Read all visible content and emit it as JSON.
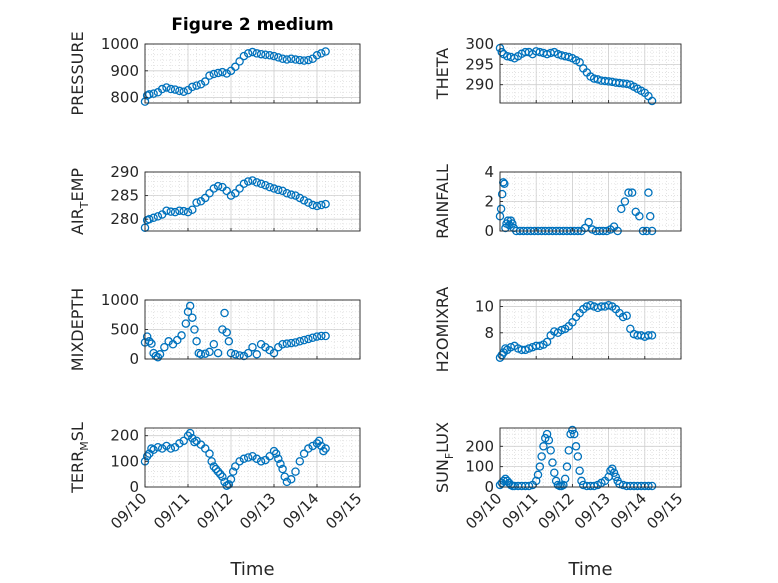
{
  "figure": {
    "title": "Figure 2 medium"
  },
  "marker_color": "#0072BD",
  "chart_data": [
    {
      "type": "scatter",
      "ylabel_main": "PRESSURE",
      "ylabel_sub": "",
      "ylabel_tail": "",
      "xlabel": "",
      "ylim": [
        780,
        1000
      ],
      "yticks": [
        {
          "v": 800,
          "label": "800"
        },
        {
          "v": 900,
          "label": "900"
        },
        {
          "v": 1000,
          "label": "1000"
        }
      ],
      "xlim": [
        10,
        15
      ],
      "xticks": [],
      "show_xticklabels": false,
      "x": [
        10.0,
        10.05,
        10.1,
        10.2,
        10.3,
        10.4,
        10.5,
        10.6,
        10.7,
        10.8,
        10.9,
        11.0,
        11.1,
        11.2,
        11.3,
        11.4,
        11.5,
        11.6,
        11.7,
        11.8,
        11.9,
        12.0,
        12.1,
        12.2,
        12.3,
        12.4,
        12.5,
        12.6,
        12.7,
        12.8,
        12.9,
        13.0,
        13.1,
        13.2,
        13.3,
        13.4,
        13.5,
        13.6,
        13.7,
        13.8,
        13.9,
        14.0,
        14.1,
        14.2
      ],
      "y": [
        785,
        808,
        812,
        815,
        820,
        832,
        838,
        832,
        830,
        825,
        822,
        828,
        840,
        845,
        850,
        860,
        882,
        888,
        892,
        895,
        890,
        900,
        915,
        935,
        955,
        965,
        970,
        965,
        962,
        960,
        958,
        955,
        950,
        945,
        942,
        945,
        942,
        940,
        938,
        940,
        945,
        958,
        965,
        972
      ]
    },
    {
      "type": "scatter",
      "ylabel_main": "THETA",
      "ylabel_sub": "",
      "ylabel_tail": "",
      "xlabel": "",
      "ylim": [
        285.5,
        300
      ],
      "yticks": [
        {
          "v": 290,
          "label": "290"
        },
        {
          "v": 295,
          "label": "295"
        },
        {
          "v": 300,
          "label": "300"
        }
      ],
      "xlim": [
        10,
        15
      ],
      "xticks": [],
      "show_xticklabels": false,
      "x": [
        10.0,
        10.05,
        10.1,
        10.2,
        10.3,
        10.4,
        10.5,
        10.6,
        10.7,
        10.8,
        10.9,
        11.0,
        11.1,
        11.2,
        11.3,
        11.4,
        11.5,
        11.6,
        11.7,
        11.8,
        11.9,
        12.0,
        12.1,
        12.2,
        12.3,
        12.4,
        12.5,
        12.6,
        12.7,
        12.8,
        12.9,
        13.0,
        13.1,
        13.2,
        13.3,
        13.4,
        13.5,
        13.6,
        13.7,
        13.8,
        13.9,
        14.0,
        14.1,
        14.2
      ],
      "y": [
        299.0,
        298.0,
        297.5,
        297.0,
        296.8,
        296.5,
        297.0,
        297.6,
        298.0,
        298.0,
        297.5,
        298.2,
        298.0,
        297.8,
        297.5,
        297.8,
        298.0,
        297.5,
        297.2,
        297.0,
        296.8,
        296.5,
        296.0,
        295.5,
        294.0,
        293.0,
        292.0,
        291.5,
        291.3,
        291.0,
        290.9,
        290.8,
        290.7,
        290.5,
        290.4,
        290.3,
        290.2,
        290.0,
        289.5,
        289.0,
        288.5,
        288.0,
        287.2,
        286.0
      ]
    },
    {
      "type": "scatter",
      "ylabel_main": "AIR",
      "ylabel_sub": "T",
      "ylabel_tail": "EMP",
      "xlabel": "",
      "ylim": [
        277.5,
        290
      ],
      "yticks": [
        {
          "v": 280,
          "label": "280"
        },
        {
          "v": 285,
          "label": "285"
        },
        {
          "v": 290,
          "label": "290"
        }
      ],
      "xlim": [
        10,
        15
      ],
      "xticks": [],
      "show_xticklabels": false,
      "x": [
        10.0,
        10.05,
        10.1,
        10.2,
        10.3,
        10.4,
        10.5,
        10.6,
        10.7,
        10.8,
        10.9,
        11.0,
        11.1,
        11.2,
        11.3,
        11.4,
        11.5,
        11.6,
        11.7,
        11.8,
        11.9,
        12.0,
        12.1,
        12.2,
        12.3,
        12.4,
        12.5,
        12.6,
        12.7,
        12.8,
        12.9,
        13.0,
        13.1,
        13.2,
        13.3,
        13.4,
        13.5,
        13.6,
        13.7,
        13.8,
        13.9,
        14.0,
        14.1,
        14.2
      ],
      "y": [
        278.2,
        279.8,
        280.0,
        280.3,
        280.6,
        281.0,
        281.8,
        281.6,
        281.5,
        281.8,
        281.7,
        281.5,
        282.0,
        283.5,
        283.8,
        284.5,
        285.5,
        286.5,
        287.0,
        286.8,
        286.0,
        285.0,
        285.5,
        286.5,
        287.5,
        288.0,
        288.2,
        287.8,
        287.5,
        287.2,
        286.8,
        286.5,
        286.2,
        286.0,
        285.5,
        285.2,
        285.0,
        284.5,
        284.0,
        283.5,
        283.0,
        282.8,
        283.0,
        283.2
      ]
    },
    {
      "type": "scatter",
      "ylabel_main": "RAINFALL",
      "ylabel_sub": "",
      "ylabel_tail": "",
      "xlabel": "",
      "ylim": [
        0,
        4
      ],
      "yticks": [
        {
          "v": 0,
          "label": "0"
        },
        {
          "v": 2,
          "label": "2"
        },
        {
          "v": 4,
          "label": "4"
        }
      ],
      "xlim": [
        10,
        15
      ],
      "xticks": [],
      "show_xticklabels": false,
      "x": [
        10.0,
        10.03,
        10.06,
        10.09,
        10.12,
        10.15,
        10.18,
        10.22,
        10.26,
        10.3,
        10.34,
        10.38,
        10.45,
        10.55,
        10.65,
        10.75,
        10.85,
        10.95,
        11.05,
        11.15,
        11.25,
        11.35,
        11.45,
        11.55,
        11.65,
        11.75,
        11.85,
        11.95,
        12.05,
        12.15,
        12.25,
        12.35,
        12.45,
        12.55,
        12.65,
        12.75,
        12.85,
        12.95,
        13.05,
        13.15,
        13.25,
        13.35,
        13.45,
        13.55,
        13.65,
        13.75,
        13.85,
        13.95,
        14.05,
        14.1,
        14.15,
        14.2
      ],
      "y": [
        1.0,
        1.5,
        2.5,
        3.3,
        3.2,
        0.2,
        0.5,
        0.7,
        0.4,
        0.7,
        0.5,
        0.2,
        0,
        0,
        0,
        0,
        0,
        0,
        0,
        0,
        0,
        0,
        0,
        0,
        0,
        0,
        0,
        0,
        0,
        0,
        0,
        0.2,
        0.6,
        0.1,
        0,
        0,
        0,
        0,
        0.1,
        0.3,
        0,
        1.5,
        2.0,
        2.6,
        2.6,
        1.3,
        1.0,
        0,
        0,
        2.6,
        1.0,
        0
      ]
    },
    {
      "type": "scatter",
      "ylabel_main": "MIXDEPTH",
      "ylabel_sub": "",
      "ylabel_tail": "",
      "xlabel": "",
      "ylim": [
        0,
        1000
      ],
      "yticks": [
        {
          "v": 0,
          "label": "0"
        },
        {
          "v": 500,
          "label": "500"
        },
        {
          "v": 1000,
          "label": "1000"
        }
      ],
      "xlim": [
        10,
        15
      ],
      "xticks": [],
      "show_xticklabels": false,
      "x": [
        10.0,
        10.05,
        10.1,
        10.15,
        10.2,
        10.25,
        10.3,
        10.35,
        10.45,
        10.55,
        10.65,
        10.75,
        10.85,
        10.95,
        11.0,
        11.05,
        11.1,
        11.15,
        11.2,
        11.25,
        11.3,
        11.4,
        11.5,
        11.6,
        11.7,
        11.8,
        11.85,
        11.9,
        11.95,
        12.0,
        12.1,
        12.2,
        12.3,
        12.4,
        12.5,
        12.6,
        12.7,
        12.8,
        12.9,
        13.0,
        13.1,
        13.2,
        13.3,
        13.4,
        13.5,
        13.6,
        13.7,
        13.8,
        13.9,
        14.0,
        14.1,
        14.2
      ],
      "y": [
        280,
        380,
        300,
        260,
        100,
        50,
        30,
        80,
        200,
        300,
        250,
        320,
        400,
        600,
        800,
        900,
        700,
        500,
        300,
        100,
        80,
        90,
        120,
        250,
        100,
        500,
        780,
        450,
        300,
        100,
        80,
        60,
        50,
        100,
        200,
        80,
        250,
        200,
        150,
        100,
        200,
        250,
        260,
        270,
        280,
        300,
        320,
        340,
        360,
        380,
        390,
        390
      ]
    },
    {
      "type": "scatter",
      "ylabel_main": "H2OMIXRA",
      "ylabel_sub": "",
      "ylabel_tail": "",
      "xlabel": "",
      "ylim": [
        6,
        10.5
      ],
      "yticks": [
        {
          "v": 8,
          "label": "8"
        },
        {
          "v": 10,
          "label": "10"
        }
      ],
      "xlim": [
        10,
        15
      ],
      "xticks": [],
      "show_xticklabels": false,
      "x": [
        10.0,
        10.05,
        10.1,
        10.15,
        10.2,
        10.3,
        10.4,
        10.5,
        10.6,
        10.7,
        10.8,
        10.9,
        11.0,
        11.1,
        11.2,
        11.3,
        11.4,
        11.5,
        11.6,
        11.7,
        11.8,
        11.9,
        12.0,
        12.1,
        12.2,
        12.3,
        12.4,
        12.5,
        12.6,
        12.7,
        12.8,
        12.9,
        13.0,
        13.1,
        13.2,
        13.3,
        13.4,
        13.5,
        13.6,
        13.7,
        13.8,
        13.9,
        14.0,
        14.1,
        14.2
      ],
      "y": [
        6.1,
        6.3,
        6.5,
        6.8,
        6.7,
        6.9,
        7.0,
        6.8,
        6.7,
        6.7,
        6.8,
        6.9,
        7.0,
        7.0,
        7.1,
        7.3,
        7.8,
        8.1,
        8.0,
        8.2,
        8.3,
        8.5,
        8.8,
        9.2,
        9.5,
        9.8,
        10.0,
        10.1,
        10.0,
        9.9,
        10.0,
        10.0,
        10.1,
        10.0,
        9.8,
        9.5,
        9.2,
        9.3,
        8.3,
        7.9,
        7.8,
        7.8,
        7.7,
        7.8,
        7.8
      ]
    },
    {
      "type": "scatter",
      "ylabel_main": "TERR",
      "ylabel_sub": "M",
      "ylabel_tail": "SL",
      "xlabel": "Time",
      "ylim": [
        0,
        230
      ],
      "yticks": [
        {
          "v": 0,
          "label": "0"
        },
        {
          "v": 100,
          "label": "100"
        },
        {
          "v": 200,
          "label": "200"
        }
      ],
      "xlim": [
        10,
        15
      ],
      "xticks": [
        {
          "v": 10,
          "label": "09/10"
        },
        {
          "v": 11,
          "label": "09/11"
        },
        {
          "v": 12,
          "label": "09/12"
        },
        {
          "v": 13,
          "label": "09/13"
        },
        {
          "v": 14,
          "label": "09/14"
        },
        {
          "v": 15,
          "label": "09/15"
        }
      ],
      "show_xticklabels": true,
      "x": [
        10.0,
        10.05,
        10.1,
        10.15,
        10.2,
        10.3,
        10.4,
        10.5,
        10.6,
        10.7,
        10.8,
        10.9,
        11.0,
        11.05,
        11.1,
        11.15,
        11.2,
        11.3,
        11.4,
        11.5,
        11.55,
        11.6,
        11.65,
        11.7,
        11.75,
        11.8,
        11.85,
        11.9,
        11.95,
        12.0,
        12.05,
        12.1,
        12.2,
        12.3,
        12.4,
        12.5,
        12.6,
        12.7,
        12.8,
        12.9,
        13.0,
        13.05,
        13.1,
        13.15,
        13.2,
        13.25,
        13.3,
        13.4,
        13.5,
        13.6,
        13.7,
        13.8,
        13.9,
        14.0,
        14.05,
        14.1,
        14.15,
        14.2
      ],
      "y": [
        100,
        120,
        130,
        150,
        145,
        155,
        150,
        160,
        150,
        155,
        170,
        180,
        200,
        210,
        190,
        175,
        180,
        165,
        150,
        130,
        100,
        80,
        70,
        60,
        50,
        40,
        20,
        5,
        10,
        30,
        60,
        80,
        100,
        110,
        115,
        120,
        110,
        100,
        105,
        120,
        140,
        130,
        110,
        90,
        70,
        40,
        20,
        30,
        60,
        100,
        130,
        150,
        160,
        170,
        180,
        160,
        140,
        150
      ]
    },
    {
      "type": "scatter",
      "ylabel_main": "SUN",
      "ylabel_sub": "F",
      "ylabel_tail": "LUX",
      "xlabel": "Time",
      "ylim": [
        0,
        290
      ],
      "yticks": [
        {
          "v": 0,
          "label": "0"
        },
        {
          "v": 100,
          "label": "100"
        },
        {
          "v": 200,
          "label": "200"
        }
      ],
      "xlim": [
        10,
        15
      ],
      "xticks": [
        {
          "v": 10,
          "label": "09/10"
        },
        {
          "v": 11,
          "label": "09/11"
        },
        {
          "v": 12,
          "label": "09/12"
        },
        {
          "v": 13,
          "label": "09/13"
        },
        {
          "v": 14,
          "label": "09/14"
        },
        {
          "v": 15,
          "label": "09/15"
        }
      ],
      "show_xticklabels": true,
      "x": [
        10.0,
        10.05,
        10.1,
        10.15,
        10.2,
        10.25,
        10.3,
        10.35,
        10.4,
        10.5,
        10.6,
        10.7,
        10.8,
        10.9,
        11.0,
        11.05,
        11.1,
        11.15,
        11.2,
        11.25,
        11.3,
        11.35,
        11.4,
        11.45,
        11.5,
        11.55,
        11.6,
        11.65,
        11.7,
        11.75,
        11.8,
        11.85,
        11.9,
        11.95,
        12.0,
        12.05,
        12.1,
        12.15,
        12.2,
        12.25,
        12.3,
        12.4,
        12.5,
        12.6,
        12.7,
        12.8,
        12.9,
        13.0,
        13.05,
        13.1,
        13.15,
        13.2,
        13.25,
        13.3,
        13.4,
        13.5,
        13.6,
        13.7,
        13.8,
        13.9,
        14.0,
        14.1,
        14.2
      ],
      "y": [
        10,
        20,
        30,
        40,
        30,
        20,
        10,
        5,
        5,
        5,
        5,
        5,
        5,
        10,
        30,
        60,
        100,
        150,
        200,
        240,
        260,
        230,
        180,
        120,
        70,
        30,
        10,
        5,
        5,
        10,
        40,
        100,
        180,
        260,
        280,
        260,
        200,
        150,
        80,
        30,
        10,
        5,
        5,
        5,
        10,
        20,
        30,
        50,
        80,
        90,
        70,
        50,
        30,
        15,
        10,
        5,
        5,
        5,
        5,
        5,
        5,
        5,
        5
      ]
    }
  ]
}
